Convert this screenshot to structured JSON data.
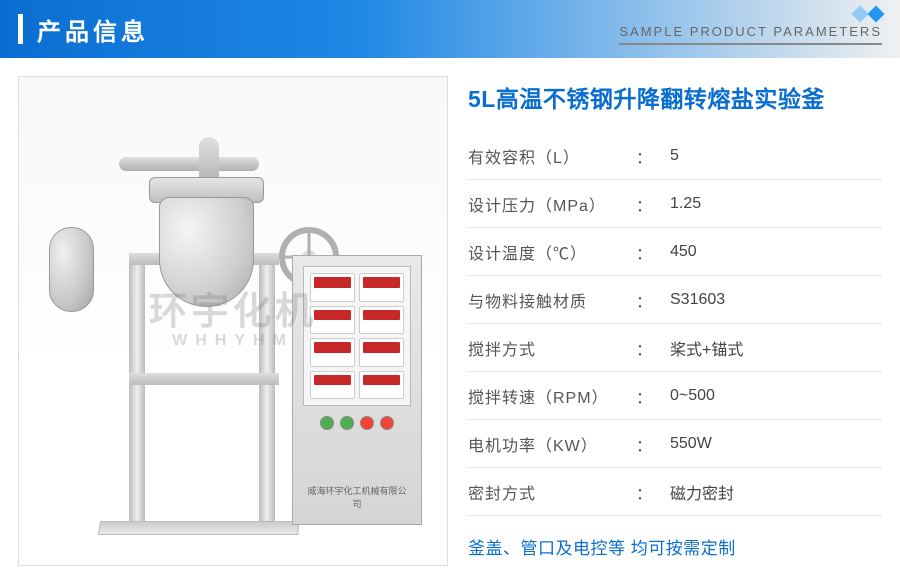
{
  "header": {
    "title": "产品信息",
    "subtitle": "SAMPLE PRODUCT PARAMETERS"
  },
  "watermark": {
    "main": "环宇化机",
    "sub": "WHHYHM"
  },
  "control_label": "威海环宇化工机械有限公司",
  "product": {
    "title": "5L高温不锈钢升降翻转熔盐实验釜",
    "specs": [
      {
        "label": "有效容积（L）",
        "value": "5"
      },
      {
        "label": "设计压力（MPa）",
        "value": "1.25"
      },
      {
        "label": "设计温度（℃）",
        "value": "450"
      },
      {
        "label": "与物料接触材质",
        "value": "S31603"
      },
      {
        "label": "搅拌方式",
        "value": "桨式+锚式"
      },
      {
        "label": "搅拌转速（RPM）",
        "value": "0~500"
      },
      {
        "label": "电机功率（KW）",
        "value": "550W"
      },
      {
        "label": "密封方式",
        "value": "磁力密封"
      }
    ],
    "note": "釜盖、管口及电控等 均可按需定制"
  },
  "colors": {
    "brand_blue": "#0a6ed1",
    "text_gray": "#555555",
    "border_gray": "#e5e5e5"
  }
}
